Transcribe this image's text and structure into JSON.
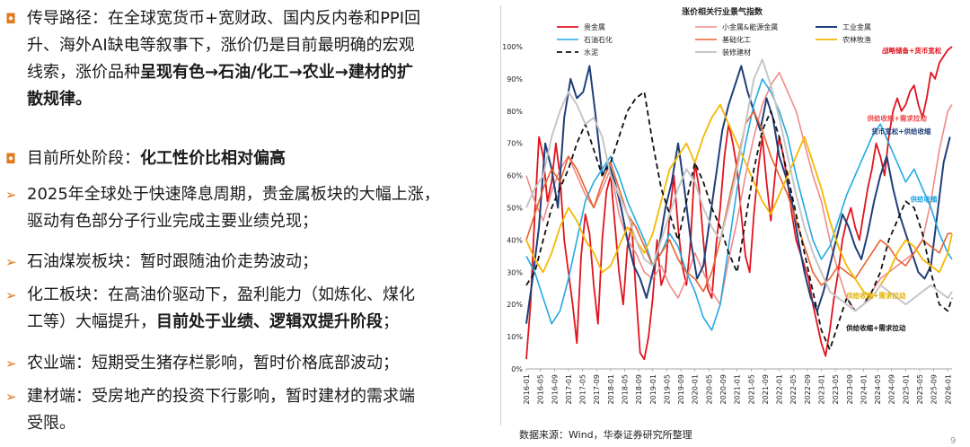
{
  "left": {
    "b1_l1": "传导路径：在全球宽货币+宽财政、国内反内卷和PPI回",
    "b1_l2": "升、海外AI缺电等叙事下，涨价仍是目前最明确的宏观",
    "b1_l3_a": "线索，涨价品种",
    "b1_l3_b": "呈现有色→石油/化工→农业→建材的扩",
    "b1_l4": "散规律。",
    "b2_a": "目前所处阶段：",
    "b2_b": "化工性价比相对偏高",
    "b3_l1": "2025年全球处于快速降息周期，贵金属板块的大幅上涨，",
    "b3_l2": "驱动有色部分子行业完成主要业绩兑现；",
    "b4": "石油煤炭板块：暂时跟随油价走势波动；",
    "b5_l1": "化工板块：在高油价驱动下，盈利能力（如炼化、煤化",
    "b5_l2_a": "工等）大幅提升，",
    "b5_l2_b": "目前处于业绩、逻辑双提升阶段",
    "b5_l2_c": "；",
    "b6": "农业端：短期受生猪存栏影响，暂时价格底部波动；",
    "b7_l1": "建材端：受房地产的投资下行影响，暂时建材的需求端",
    "b7_l2": "受限。",
    "square_marker": "◘",
    "arrow_marker": "➢"
  },
  "source": "数据来源：Wind，华泰证券研究所整理",
  "page_number": "9",
  "chart_data": {
    "type": "line",
    "title": "涨价相关行业景气指数",
    "ylim": [
      0,
      100
    ],
    "y_ticks": [
      "0%",
      "10%",
      "20%",
      "30%",
      "40%",
      "50%",
      "60%",
      "70%",
      "80%",
      "90%",
      "100%"
    ],
    "x_ticks": [
      "2016-01",
      "2016-05",
      "2016-09",
      "2017-01",
      "2017-05",
      "2017-09",
      "2018-01",
      "2018-05",
      "2018-09",
      "2019-01",
      "2019-05",
      "2019-09",
      "2020-01",
      "2020-05",
      "2020-09",
      "2021-01",
      "2021-05",
      "2021-09",
      "2022-01",
      "2022-05",
      "2022-09",
      "2023-01",
      "2023-05",
      "2023-09",
      "2024-01",
      "2024-05",
      "2024-09",
      "2025-01",
      "2025-05",
      "2025-09",
      "2026-01"
    ],
    "annotations": [
      {
        "text": "战略储备+货币宽松",
        "x": 2025.85,
        "y": 98,
        "color": "#e0141e"
      },
      {
        "text": "供给收缩+需求拉动",
        "x": 2025.5,
        "y": 77,
        "color": "#e84a4a"
      },
      {
        "text": "货币宽松+供给收缩",
        "x": 2025.6,
        "y": 73,
        "color": "#1f3f7a"
      },
      {
        "text": "供给收缩",
        "x": 2025.75,
        "y": 52,
        "color": "#1aa3e0"
      },
      {
        "text": "供给收缩+需求拉动",
        "x": 2025.0,
        "y": 22,
        "color": "#e0b000"
      },
      {
        "text": "供给收缩+需求拉动",
        "x": 2025.0,
        "y": 12,
        "color": "#111111"
      }
    ],
    "series": [
      {
        "name": "贵金属",
        "color": "#e0141e",
        "dash": "",
        "width": 1.8,
        "x": [
          2016.0,
          2016.1,
          2016.2,
          2016.3,
          2016.4,
          2016.5,
          2016.6,
          2016.7,
          2016.8,
          2016.9,
          2017.0,
          2017.1,
          2017.2,
          2017.3,
          2017.4,
          2017.5,
          2017.6,
          2017.7,
          2017.8,
          2017.9,
          2018.0,
          2018.1,
          2018.2,
          2018.3,
          2018.4,
          2018.5,
          2018.6,
          2018.7,
          2018.8,
          2018.9,
          2019.0,
          2019.1,
          2019.2,
          2019.3,
          2019.4,
          2019.5,
          2019.6,
          2019.7,
          2019.8,
          2019.9,
          2020.0,
          2020.1,
          2020.2,
          2020.3,
          2020.4,
          2020.5,
          2020.6,
          2020.7,
          2020.8,
          2020.9,
          2021.0,
          2021.1,
          2021.2,
          2021.3,
          2021.4,
          2021.5,
          2021.6,
          2021.7,
          2021.8,
          2021.9,
          2022.0,
          2022.1,
          2022.2,
          2022.3,
          2022.4,
          2022.5,
          2022.6,
          2022.7,
          2022.8,
          2022.9,
          2023.0,
          2023.1,
          2023.2,
          2023.3,
          2023.4,
          2023.5,
          2023.6,
          2023.7,
          2023.8,
          2023.9,
          2024.0,
          2024.1,
          2024.2,
          2024.3,
          2024.4,
          2024.5,
          2024.6,
          2024.7,
          2024.8,
          2024.9,
          2025.0,
          2025.1,
          2025.2,
          2025.3,
          2025.4,
          2025.5,
          2025.6,
          2025.7,
          2025.8,
          2025.9,
          2026.0,
          2026.1
        ],
        "y": [
          3,
          20,
          48,
          72,
          66,
          52,
          58,
          70,
          60,
          40,
          30,
          20,
          8,
          35,
          48,
          42,
          26,
          14,
          40,
          55,
          60,
          45,
          30,
          20,
          38,
          45,
          24,
          5,
          3,
          10,
          22,
          40,
          26,
          30,
          48,
          60,
          44,
          32,
          26,
          40,
          64,
          56,
          40,
          25,
          22,
          38,
          50,
          66,
          76,
          70,
          62,
          48,
          35,
          30,
          48,
          62,
          72,
          58,
          46,
          60,
          72,
          66,
          58,
          48,
          40,
          36,
          32,
          28,
          20,
          14,
          8,
          4,
          12,
          22,
          30,
          40,
          46,
          50,
          44,
          40,
          48,
          56,
          62,
          70,
          66,
          60,
          72,
          80,
          84,
          80,
          82,
          86,
          88,
          82,
          78,
          84,
          92,
          90,
          95,
          97,
          99,
          100
        ]
      },
      {
        "name": "小金属&能源金属",
        "color": "#f08a8a",
        "dash": "",
        "width": 1.6,
        "x": [
          2016.0,
          2016.2,
          2016.4,
          2016.6,
          2016.8,
          2017.0,
          2017.2,
          2017.4,
          2017.6,
          2017.8,
          2018.0,
          2018.2,
          2018.4,
          2018.6,
          2018.8,
          2019.0,
          2019.2,
          2019.4,
          2019.6,
          2019.8,
          2020.0,
          2020.2,
          2020.4,
          2020.6,
          2020.8,
          2021.0,
          2021.2,
          2021.4,
          2021.6,
          2021.8,
          2022.0,
          2022.2,
          2022.4,
          2022.6,
          2022.8,
          2023.0,
          2023.2,
          2023.4,
          2023.6,
          2023.8,
          2024.0,
          2024.2,
          2024.4,
          2024.6,
          2024.8,
          2025.0,
          2025.2,
          2025.4,
          2025.6,
          2025.8,
          2026.0,
          2026.1
        ],
        "y": [
          60,
          52,
          46,
          55,
          62,
          66,
          60,
          54,
          50,
          56,
          62,
          48,
          40,
          36,
          30,
          28,
          32,
          26,
          22,
          28,
          36,
          30,
          24,
          20,
          34,
          46,
          60,
          72,
          82,
          88,
          92,
          86,
          80,
          70,
          60,
          52,
          40,
          30,
          22,
          18,
          20,
          24,
          28,
          30,
          32,
          34,
          36,
          40,
          52,
          68,
          80,
          82
        ]
      },
      {
        "name": "工业金属",
        "color": "#1f3f7a",
        "dash": "",
        "width": 2.0,
        "x": [
          2016.0,
          2016.15,
          2016.3,
          2016.45,
          2016.6,
          2016.75,
          2016.9,
          2017.05,
          2017.2,
          2017.35,
          2017.5,
          2017.65,
          2017.8,
          2017.95,
          2018.1,
          2018.25,
          2018.4,
          2018.55,
          2018.7,
          2018.85,
          2019.0,
          2019.15,
          2019.3,
          2019.45,
          2019.6,
          2019.75,
          2019.9,
          2020.05,
          2020.2,
          2020.35,
          2020.5,
          2020.65,
          2020.8,
          2020.95,
          2021.1,
          2021.25,
          2021.4,
          2021.55,
          2021.7,
          2021.85,
          2022.0,
          2022.15,
          2022.3,
          2022.45,
          2022.6,
          2022.75,
          2022.9,
          2023.05,
          2023.2,
          2023.35,
          2023.5,
          2023.65,
          2023.8,
          2023.95,
          2024.1,
          2024.25,
          2024.4,
          2024.55,
          2024.7,
          2024.85,
          2025.0,
          2025.15,
          2025.3,
          2025.45,
          2025.6,
          2025.75,
          2025.9,
          2026.05
        ],
        "y": [
          14,
          28,
          44,
          70,
          62,
          50,
          78,
          90,
          84,
          86,
          94,
          78,
          60,
          64,
          58,
          50,
          40,
          32,
          28,
          22,
          30,
          38,
          50,
          58,
          70,
          56,
          40,
          28,
          32,
          46,
          60,
          74,
          82,
          88,
          94,
          86,
          80,
          74,
          84,
          78,
          66,
          60,
          52,
          40,
          30,
          22,
          18,
          24,
          32,
          40,
          48,
          44,
          38,
          34,
          42,
          52,
          60,
          66,
          56,
          48,
          42,
          36,
          30,
          28,
          32,
          48,
          64,
          72
        ]
      },
      {
        "name": "石油石化",
        "color": "#24a9e1",
        "dash": "",
        "width": 1.6,
        "x": [
          2016.0,
          2016.2,
          2016.4,
          2016.6,
          2016.8,
          2017.0,
          2017.2,
          2017.4,
          2017.6,
          2017.8,
          2018.0,
          2018.2,
          2018.4,
          2018.6,
          2018.8,
          2019.0,
          2019.2,
          2019.4,
          2019.6,
          2019.8,
          2020.0,
          2020.2,
          2020.4,
          2020.6,
          2020.8,
          2021.0,
          2021.2,
          2021.4,
          2021.6,
          2021.8,
          2022.0,
          2022.2,
          2022.4,
          2022.6,
          2022.8,
          2023.0,
          2023.2,
          2023.4,
          2023.6,
          2023.8,
          2024.0,
          2024.2,
          2024.4,
          2024.6,
          2024.8,
          2025.0,
          2025.2,
          2025.4,
          2025.6,
          2025.8,
          2026.0,
          2026.1
        ],
        "y": [
          35,
          30,
          22,
          14,
          18,
          28,
          40,
          52,
          58,
          62,
          66,
          60,
          52,
          46,
          40,
          32,
          36,
          42,
          38,
          30,
          24,
          16,
          12,
          20,
          38,
          56,
          70,
          82,
          90,
          86,
          80,
          72,
          60,
          50,
          40,
          34,
          38,
          46,
          54,
          60,
          66,
          72,
          76,
          70,
          64,
          58,
          62,
          56,
          50,
          42,
          36,
          34
        ]
      },
      {
        "name": "基础化工",
        "color": "#e8622e",
        "dash": "",
        "width": 1.6,
        "x": [
          2016.0,
          2016.2,
          2016.4,
          2016.6,
          2016.8,
          2017.0,
          2017.2,
          2017.4,
          2017.6,
          2017.8,
          2018.0,
          2018.2,
          2018.4,
          2018.6,
          2018.8,
          2019.0,
          2019.2,
          2019.4,
          2019.6,
          2019.8,
          2020.0,
          2020.2,
          2020.4,
          2020.6,
          2020.8,
          2021.0,
          2021.2,
          2021.4,
          2021.6,
          2021.8,
          2022.0,
          2022.2,
          2022.4,
          2022.6,
          2022.8,
          2023.0,
          2023.2,
          2023.4,
          2023.6,
          2023.8,
          2024.0,
          2024.2,
          2024.4,
          2024.6,
          2024.8,
          2025.0,
          2025.2,
          2025.4,
          2025.6,
          2025.8,
          2026.0,
          2026.1
        ],
        "y": [
          40,
          48,
          56,
          62,
          58,
          66,
          62,
          56,
          50,
          58,
          64,
          56,
          48,
          44,
          38,
          32,
          36,
          40,
          34,
          30,
          28,
          24,
          30,
          40,
          52,
          64,
          76,
          80,
          74,
          66,
          60,
          54,
          46,
          38,
          30,
          26,
          28,
          32,
          30,
          28,
          32,
          36,
          40,
          38,
          34,
          32,
          36,
          40,
          38,
          36,
          42,
          42
        ]
      },
      {
        "name": "农林牧渔",
        "color": "#f5b800",
        "dash": "",
        "width": 1.8,
        "x": [
          2016.0,
          2016.2,
          2016.4,
          2016.6,
          2016.8,
          2017.0,
          2017.2,
          2017.4,
          2017.6,
          2017.8,
          2018.0,
          2018.2,
          2018.4,
          2018.6,
          2018.8,
          2019.0,
          2019.2,
          2019.4,
          2019.6,
          2019.8,
          2020.0,
          2020.2,
          2020.4,
          2020.6,
          2020.8,
          2021.0,
          2021.2,
          2021.4,
          2021.6,
          2021.8,
          2022.0,
          2022.2,
          2022.4,
          2022.6,
          2022.8,
          2023.0,
          2023.2,
          2023.4,
          2023.6,
          2023.8,
          2024.0,
          2024.2,
          2024.4,
          2024.6,
          2024.8,
          2025.0,
          2025.2,
          2025.4,
          2025.6,
          2025.8,
          2026.0,
          2026.1
        ],
        "y": [
          40,
          34,
          30,
          36,
          44,
          50,
          46,
          40,
          36,
          30,
          32,
          38,
          44,
          40,
          36,
          42,
          52,
          62,
          66,
          70,
          64,
          72,
          78,
          82,
          76,
          70,
          64,
          58,
          52,
          48,
          54,
          60,
          66,
          72,
          64,
          56,
          46,
          38,
          32,
          28,
          24,
          22,
          26,
          30,
          36,
          40,
          38,
          34,
          32,
          30,
          36,
          42
        ]
      },
      {
        "name": "水泥",
        "color": "#111111",
        "dash": "6,4",
        "width": 1.8,
        "x": [
          2016.0,
          2016.2,
          2016.4,
          2016.6,
          2016.8,
          2017.0,
          2017.2,
          2017.4,
          2017.6,
          2017.8,
          2018.0,
          2018.2,
          2018.4,
          2018.6,
          2018.8,
          2019.0,
          2019.2,
          2019.4,
          2019.6,
          2019.8,
          2020.0,
          2020.2,
          2020.4,
          2020.6,
          2020.8,
          2021.0,
          2021.2,
          2021.4,
          2021.6,
          2021.8,
          2022.0,
          2022.2,
          2022.4,
          2022.6,
          2022.8,
          2023.0,
          2023.2,
          2023.4,
          2023.6,
          2023.8,
          2024.0,
          2024.2,
          2024.4,
          2024.6,
          2024.8,
          2025.0,
          2025.2,
          2025.4,
          2025.6,
          2025.8,
          2026.0,
          2026.1
        ],
        "y": [
          26,
          30,
          40,
          50,
          56,
          62,
          70,
          76,
          68,
          60,
          64,
          72,
          80,
          84,
          86,
          70,
          56,
          48,
          40,
          52,
          64,
          58,
          50,
          44,
          36,
          30,
          46,
          62,
          74,
          80,
          72,
          60,
          48,
          36,
          24,
          12,
          6,
          14,
          22,
          18,
          20,
          24,
          30,
          40,
          46,
          52,
          50,
          42,
          30,
          20,
          18,
          22
        ]
      },
      {
        "name": "装修建材",
        "color": "#c6c6c6",
        "dash": "",
        "width": 2.0,
        "x": [
          2016.0,
          2016.2,
          2016.4,
          2016.6,
          2016.8,
          2017.0,
          2017.2,
          2017.4,
          2017.6,
          2017.8,
          2018.0,
          2018.2,
          2018.4,
          2018.6,
          2018.8,
          2019.0,
          2019.2,
          2019.4,
          2019.6,
          2019.8,
          2020.0,
          2020.2,
          2020.4,
          2020.6,
          2020.8,
          2021.0,
          2021.2,
          2021.4,
          2021.6,
          2021.8,
          2022.0,
          2022.2,
          2022.4,
          2022.6,
          2022.8,
          2023.0,
          2023.2,
          2023.4,
          2023.6,
          2023.8,
          2024.0,
          2024.2,
          2024.4,
          2024.6,
          2024.8,
          2025.0,
          2025.2,
          2025.4,
          2025.6,
          2025.8,
          2026.0,
          2026.1
        ],
        "y": [
          50,
          56,
          60,
          72,
          80,
          86,
          82,
          76,
          78,
          72,
          60,
          54,
          48,
          40,
          34,
          32,
          40,
          48,
          56,
          62,
          58,
          50,
          44,
          40,
          50,
          62,
          76,
          90,
          96,
          88,
          78,
          66,
          54,
          44,
          36,
          30,
          24,
          22,
          20,
          18,
          20,
          22,
          26,
          24,
          22,
          20,
          22,
          24,
          26,
          24,
          22,
          24
        ]
      }
    ]
  }
}
